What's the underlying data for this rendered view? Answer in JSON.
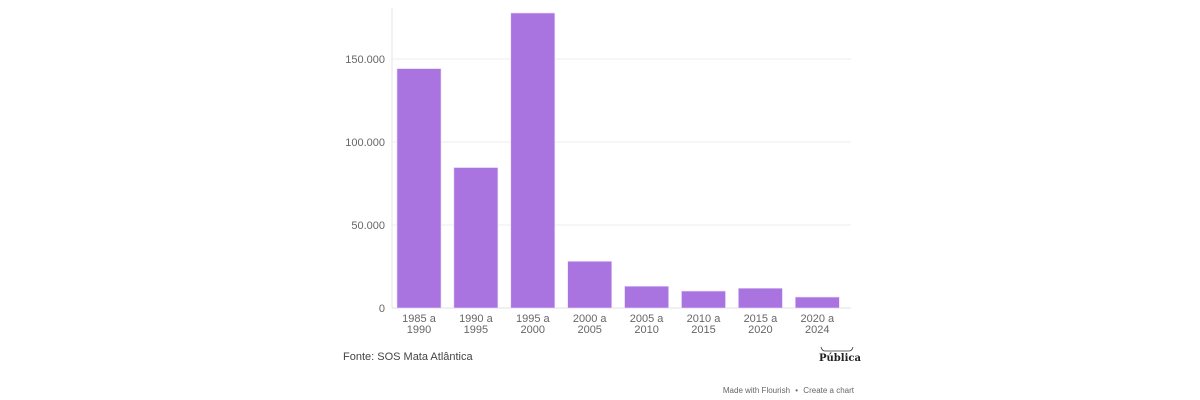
{
  "chart_data": {
    "type": "bar",
    "title": "",
    "xlabel": "",
    "ylabel": "",
    "categories": [
      [
        "1985 a",
        "1990"
      ],
      [
        "1990 a",
        "1995"
      ],
      [
        "1995 a",
        "2000"
      ],
      [
        "2000 a",
        "2005"
      ],
      [
        "2005 a",
        "2010"
      ],
      [
        "2010 a",
        "2015"
      ],
      [
        "2015 a",
        "2020"
      ],
      [
        "2020 a",
        "2024"
      ]
    ],
    "values": [
      144200,
      84600,
      177700,
      28100,
      13100,
      10200,
      11900,
      6600
    ],
    "ylim": [
      0,
      180000
    ],
    "yticks": [
      0,
      50000,
      100000,
      150000
    ],
    "ytick_labels": [
      "0",
      "50.000",
      "100.000",
      "150.000"
    ],
    "grid": true,
    "bar_color": "#a974e0"
  },
  "source": "Fonte: SOS Mata Atlântica",
  "logo_text": "Pública",
  "footer": {
    "made_with": "Made with Flourish",
    "separator": "•",
    "create": "Create a chart"
  }
}
